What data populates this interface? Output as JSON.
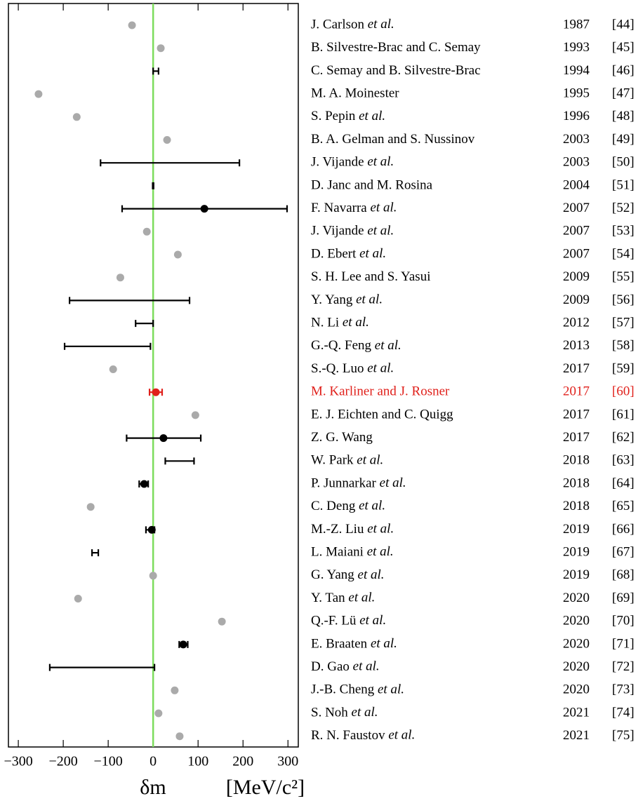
{
  "chart_data": {
    "type": "forest",
    "xlabel": "δm",
    "xunit": "[MeV/c²]",
    "xlim": [
      -322,
      323
    ],
    "xticks": [
      {
        "value": -300,
        "label": "−300"
      },
      {
        "value": -200,
        "label": "−200"
      },
      {
        "value": -100,
        "label": "−100"
      },
      0,
      100,
      200,
      300
    ],
    "zero_line_color": "#7ddc5c",
    "authors": [
      "J. Carlson et al.",
      "B. Silvestre-Brac and C. Semay",
      "C. Semay and B. Silvestre-Brac",
      "M. A. Moinester",
      "S. Pepin et al.",
      "B. A. Gelman and S. Nussinov",
      "J. Vijande et al.",
      "D. Janc and M. Rosina",
      "F. Navarra et al.",
      "J. Vijande et al.",
      "D. Ebert et al.",
      "S. H. Lee and S. Yasui",
      "Y. Yang et al.",
      "N. Li et al.",
      "G.-Q. Feng et al.",
      "S.-Q. Luo et al.",
      "M. Karliner and J. Rosner",
      "E. J. Eichten and C. Quigg",
      "Z. G. Wang",
      "W. Park et al.",
      "P. Junnarkar et al.",
      "C. Deng et al.",
      "M.-Z. Liu et al.",
      "L. Maiani et al.",
      "G. Yang et al.",
      "Y. Tan et al.",
      "Q.-F. Lü et al.",
      "E. Braaten et al.",
      "D. Gao et al.",
      "J.-B. Cheng et al.",
      "S. Noh et al.",
      "R. N. Faustov et al."
    ],
    "years": [
      "1987",
      "1993",
      "1994",
      "1995",
      "1996",
      "2003",
      "2003",
      "2004",
      "2007",
      "2007",
      "2007",
      "2009",
      "2009",
      "2012",
      "2013",
      "2017",
      "2017",
      "2017",
      "2017",
      "2018",
      "2018",
      "2018",
      "2019",
      "2019",
      "2019",
      "2020",
      "2020",
      "2020",
      "2020",
      "2020",
      "2021",
      "2021"
    ],
    "refs": [
      "[44]",
      "[45]",
      "[46]",
      "[47]",
      "[48]",
      "[49]",
      "[50]",
      "[51]",
      "[52]",
      "[53]",
      "[54]",
      "[55]",
      "[56]",
      "[57]",
      "[58]",
      "[59]",
      "[60]",
      "[61]",
      "[62]",
      "[63]",
      "[64]",
      "[65]",
      "[66]",
      "[67]",
      "[68]",
      "[69]",
      "[70]",
      "[71]",
      "[72]",
      "[73]",
      "[74]",
      "[75]"
    ],
    "center": [
      -47,
      17,
      null,
      -255,
      -170,
      31,
      null,
      null,
      114,
      -14,
      55,
      -73,
      null,
      null,
      null,
      -89,
      6,
      94,
      23,
      null,
      -20,
      -139,
      -3,
      null,
      0,
      -167,
      153,
      67,
      null,
      48,
      12,
      59
    ],
    "low": [
      null,
      null,
      0,
      null,
      null,
      null,
      -117,
      -1,
      -69,
      null,
      null,
      null,
      -186,
      -39,
      -197,
      null,
      -8,
      null,
      -59,
      27,
      -31,
      null,
      -16,
      -136,
      null,
      null,
      null,
      58,
      -230,
      null,
      null,
      null
    ],
    "high": [
      null,
      null,
      12,
      null,
      null,
      null,
      192,
      1,
      298,
      null,
      null,
      null,
      81,
      0,
      -6,
      null,
      20,
      null,
      106,
      91,
      -11,
      null,
      3,
      -122,
      null,
      null,
      null,
      77,
      3,
      null,
      null,
      null
    ],
    "colors": [
      "#aaaaaa",
      "#aaaaaa",
      "#000000",
      "#aaaaaa",
      "#aaaaaa",
      "#aaaaaa",
      "#000000",
      "#000000",
      "#000000",
      "#aaaaaa",
      "#aaaaaa",
      "#aaaaaa",
      "#000000",
      "#000000",
      "#000000",
      "#aaaaaa",
      "#e0201b",
      "#aaaaaa",
      "#000000",
      "#000000",
      "#000000",
      "#aaaaaa",
      "#000000",
      "#000000",
      "#aaaaaa",
      "#aaaaaa",
      "#aaaaaa",
      "#000000",
      "#000000",
      "#aaaaaa",
      "#aaaaaa",
      "#aaaaaa"
    ],
    "text_colors": [
      "#000000",
      "#000000",
      "#000000",
      "#000000",
      "#000000",
      "#000000",
      "#000000",
      "#000000",
      "#000000",
      "#000000",
      "#000000",
      "#000000",
      "#000000",
      "#000000",
      "#000000",
      "#000000",
      "#e0201b",
      "#000000",
      "#000000",
      "#000000",
      "#000000",
      "#000000",
      "#000000",
      "#000000",
      "#000000",
      "#000000",
      "#000000",
      "#000000",
      "#000000",
      "#000000",
      "#000000",
      "#000000"
    ]
  }
}
